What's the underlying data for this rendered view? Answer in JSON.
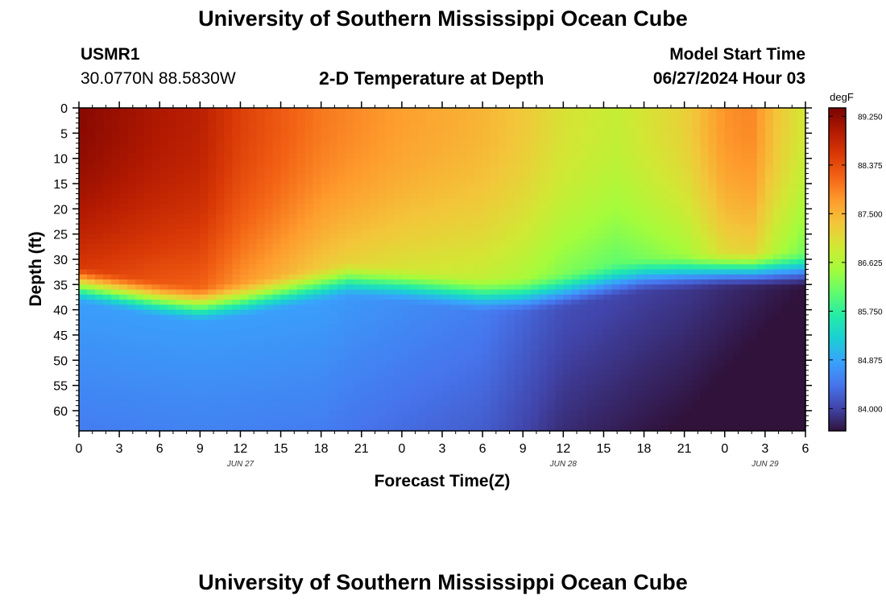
{
  "header": {
    "title": "University of Southern Mississippi Ocean Cube",
    "station_id": "USMR1",
    "station_coords": "30.0770N  88.5830W",
    "plot_title": "2-D Temperature at Depth",
    "model_start_label": "Model Start Time",
    "model_start_value": "06/27/2024 Hour 03"
  },
  "footer": {
    "title": "University of Southern Mississippi Ocean Cube"
  },
  "chart_data": {
    "type": "heatmap",
    "title": "2-D Temperature at Depth",
    "xlabel": "Forecast Time(Z)",
    "ylabel": "Depth (ft)",
    "x_hours_range": [
      0,
      54
    ],
    "y_range": [
      0,
      64
    ],
    "y_inverted": true,
    "x_tick_labels": [
      "0",
      "3",
      "6",
      "9",
      "12",
      "15",
      "18",
      "21",
      "0",
      "3",
      "6",
      "9",
      "12",
      "15",
      "18",
      "21",
      "0",
      "3",
      "6"
    ],
    "y_tick_labels": [
      "0",
      "5",
      "10",
      "15",
      "20",
      "25",
      "30",
      "35",
      "40",
      "45",
      "50",
      "55",
      "60"
    ],
    "date_labels": [
      {
        "label": "JUN 27",
        "hour": 12
      },
      {
        "label": "JUN 28",
        "hour": 36
      },
      {
        "label": "JUN 29",
        "hour": 51
      }
    ],
    "colorbar": {
      "unit": "degF",
      "min": 83.6,
      "max": 89.4,
      "ticks": [
        "89.250",
        "88.375",
        "87.500",
        "86.625",
        "85.750",
        "84.875",
        "84.000"
      ],
      "tick_values": [
        89.25,
        88.375,
        87.5,
        86.625,
        85.75,
        84.875,
        84.0
      ],
      "colors": [
        "#30123b",
        "#4145ab",
        "#4675ed",
        "#39a2fc",
        "#1bcfd4",
        "#24eca6",
        "#61fc6c",
        "#a4fc3b",
        "#d1e834",
        "#f3c63a",
        "#fe9b2d",
        "#f36315",
        "#d93806",
        "#b11901",
        "#7a0402"
      ]
    },
    "temperature_field": {
      "description": "approximate temperature (degF) at selected forecast hours",
      "surface_temp": [
        {
          "hour": 0,
          "value": 89.3
        },
        {
          "hour": 6,
          "value": 89.0
        },
        {
          "hour": 9,
          "value": 88.9
        },
        {
          "hour": 12,
          "value": 88.5
        },
        {
          "hour": 18,
          "value": 88.0
        },
        {
          "hour": 24,
          "value": 87.7
        },
        {
          "hour": 30,
          "value": 87.5
        },
        {
          "hour": 33,
          "value": 87.3
        },
        {
          "hour": 36,
          "value": 87.0
        },
        {
          "hour": 40,
          "value": 86.8
        },
        {
          "hour": 45,
          "value": 87.2
        },
        {
          "hour": 48,
          "value": 87.8
        },
        {
          "hour": 50,
          "value": 87.9
        },
        {
          "hour": 52,
          "value": 87.3
        },
        {
          "hour": 54,
          "value": 86.9
        }
      ],
      "thermocline_depth_ft": [
        {
          "hour": 0,
          "value": 31
        },
        {
          "hour": 6,
          "value": 34
        },
        {
          "hour": 9,
          "value": 35
        },
        {
          "hour": 12,
          "value": 34
        },
        {
          "hour": 18,
          "value": 31
        },
        {
          "hour": 20,
          "value": 30
        },
        {
          "hour": 24,
          "value": 31
        },
        {
          "hour": 30,
          "value": 33
        },
        {
          "hour": 33,
          "value": 33
        },
        {
          "hour": 36,
          "value": 32
        },
        {
          "hour": 42,
          "value": 29
        },
        {
          "hour": 48,
          "value": 28
        },
        {
          "hour": 54,
          "value": 28
        }
      ],
      "deep_temp": [
        {
          "hour": 0,
          "value": 84.8
        },
        {
          "hour": 18,
          "value": 84.8
        },
        {
          "hour": 30,
          "value": 84.5
        },
        {
          "hour": 36,
          "value": 84.1
        },
        {
          "hour": 45,
          "value": 83.9
        },
        {
          "hour": 54,
          "value": 83.6
        }
      ]
    }
  }
}
